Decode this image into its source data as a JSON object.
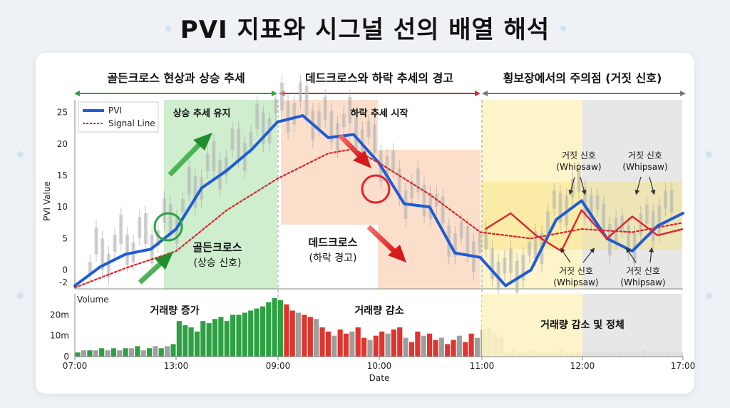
{
  "page": {
    "title": "PVI 지표와 시그널 선의 배열 해석"
  },
  "sections": [
    {
      "label": "골든크로스 현상과 상승 추세",
      "color": "#2ea043"
    },
    {
      "label": "데드크로스와 하락 추세의 경고",
      "color": "#e0242e"
    },
    {
      "label": "횡보장에서의 주의점 (거짓 신호)",
      "color": "#777777"
    }
  ],
  "annotations": {
    "uptrend": "상승 추세 유지",
    "downtrend_start": "하락 추세 시작",
    "golden_cross_1": "골든크로스",
    "golden_cross_2": "(상승 신호)",
    "dead_cross_1": "데드크로스",
    "dead_cross_2": "(하락 경고)",
    "false_signal_1": "거짓 신호",
    "false_signal_2": "(Whipsaw)",
    "volume_up": "거래량 증가",
    "volume_down": "거래량 감소",
    "volume_flat": "거래량 감소 및 정체"
  },
  "chart_data": {
    "type": "line",
    "xlabel": "Date",
    "ylabel": "PVI Value",
    "x_ticks": [
      "07:00",
      "13:00",
      "09:00",
      "10:00",
      "11:00",
      "12:00",
      "17:00"
    ],
    "ylim": [
      -3,
      27
    ],
    "y_ticks": [
      -2,
      0,
      5,
      10,
      15,
      20,
      25
    ],
    "legend": {
      "position": "top-left",
      "entries": [
        "PVI",
        "Signal Line"
      ]
    },
    "series": [
      {
        "name": "PVI",
        "color": "#1f5bd6",
        "x": [
          0,
          0.25,
          0.5,
          0.75,
          1,
          1.25,
          1.5,
          1.75,
          2,
          2.25,
          2.5,
          2.75,
          3,
          3.25,
          3.5,
          3.75,
          4,
          4.25,
          4.5,
          4.75,
          5,
          5.25,
          5.5,
          5.75,
          6
        ],
        "y": [
          -2.5,
          0.5,
          2.5,
          3.3,
          6.5,
          13,
          15.8,
          19.2,
          23.5,
          24.5,
          21,
          21.5,
          17,
          10.5,
          10,
          2.7,
          2,
          -2.5,
          0,
          8,
          11,
          5,
          3,
          7,
          9
        ]
      },
      {
        "name": "Signal Line",
        "color": "#d9252c",
        "x": [
          0,
          0.5,
          1,
          1.5,
          2,
          2.5,
          2.75,
          3,
          3.5,
          4,
          4.5,
          5,
          5.5,
          6
        ],
        "y": [
          -2.8,
          0.3,
          3,
          9.5,
          14.5,
          18.5,
          19.2,
          17,
          12,
          6,
          5,
          6.5,
          6,
          7.5
        ]
      }
    ],
    "volume": {
      "label": "Volume",
      "ylim": [
        0,
        30
      ],
      "y_ticks": [
        "0",
        "10m",
        "20m"
      ],
      "bars": [
        2,
        3,
        3,
        3,
        4,
        3,
        4,
        3,
        4,
        4,
        5,
        3,
        4,
        5,
        4,
        5,
        6,
        17,
        15,
        14,
        12,
        17,
        16,
        18,
        19,
        17,
        20,
        20,
        21,
        22,
        23,
        24,
        26,
        28,
        27,
        25,
        22,
        21,
        20,
        19,
        18,
        14,
        12,
        10,
        13,
        11,
        12,
        14,
        9,
        8,
        10,
        12,
        11,
        13,
        14,
        9,
        7,
        12,
        10,
        11,
        8,
        9,
        6,
        8,
        10,
        7,
        11,
        9,
        13,
        14,
        11,
        9,
        2,
        3,
        2,
        2,
        3,
        2,
        2,
        2,
        2,
        3,
        2,
        2,
        2,
        2,
        2,
        2,
        2,
        2,
        2,
        2,
        2,
        2,
        2,
        3,
        2,
        2,
        2,
        2,
        2,
        2
      ]
    }
  }
}
